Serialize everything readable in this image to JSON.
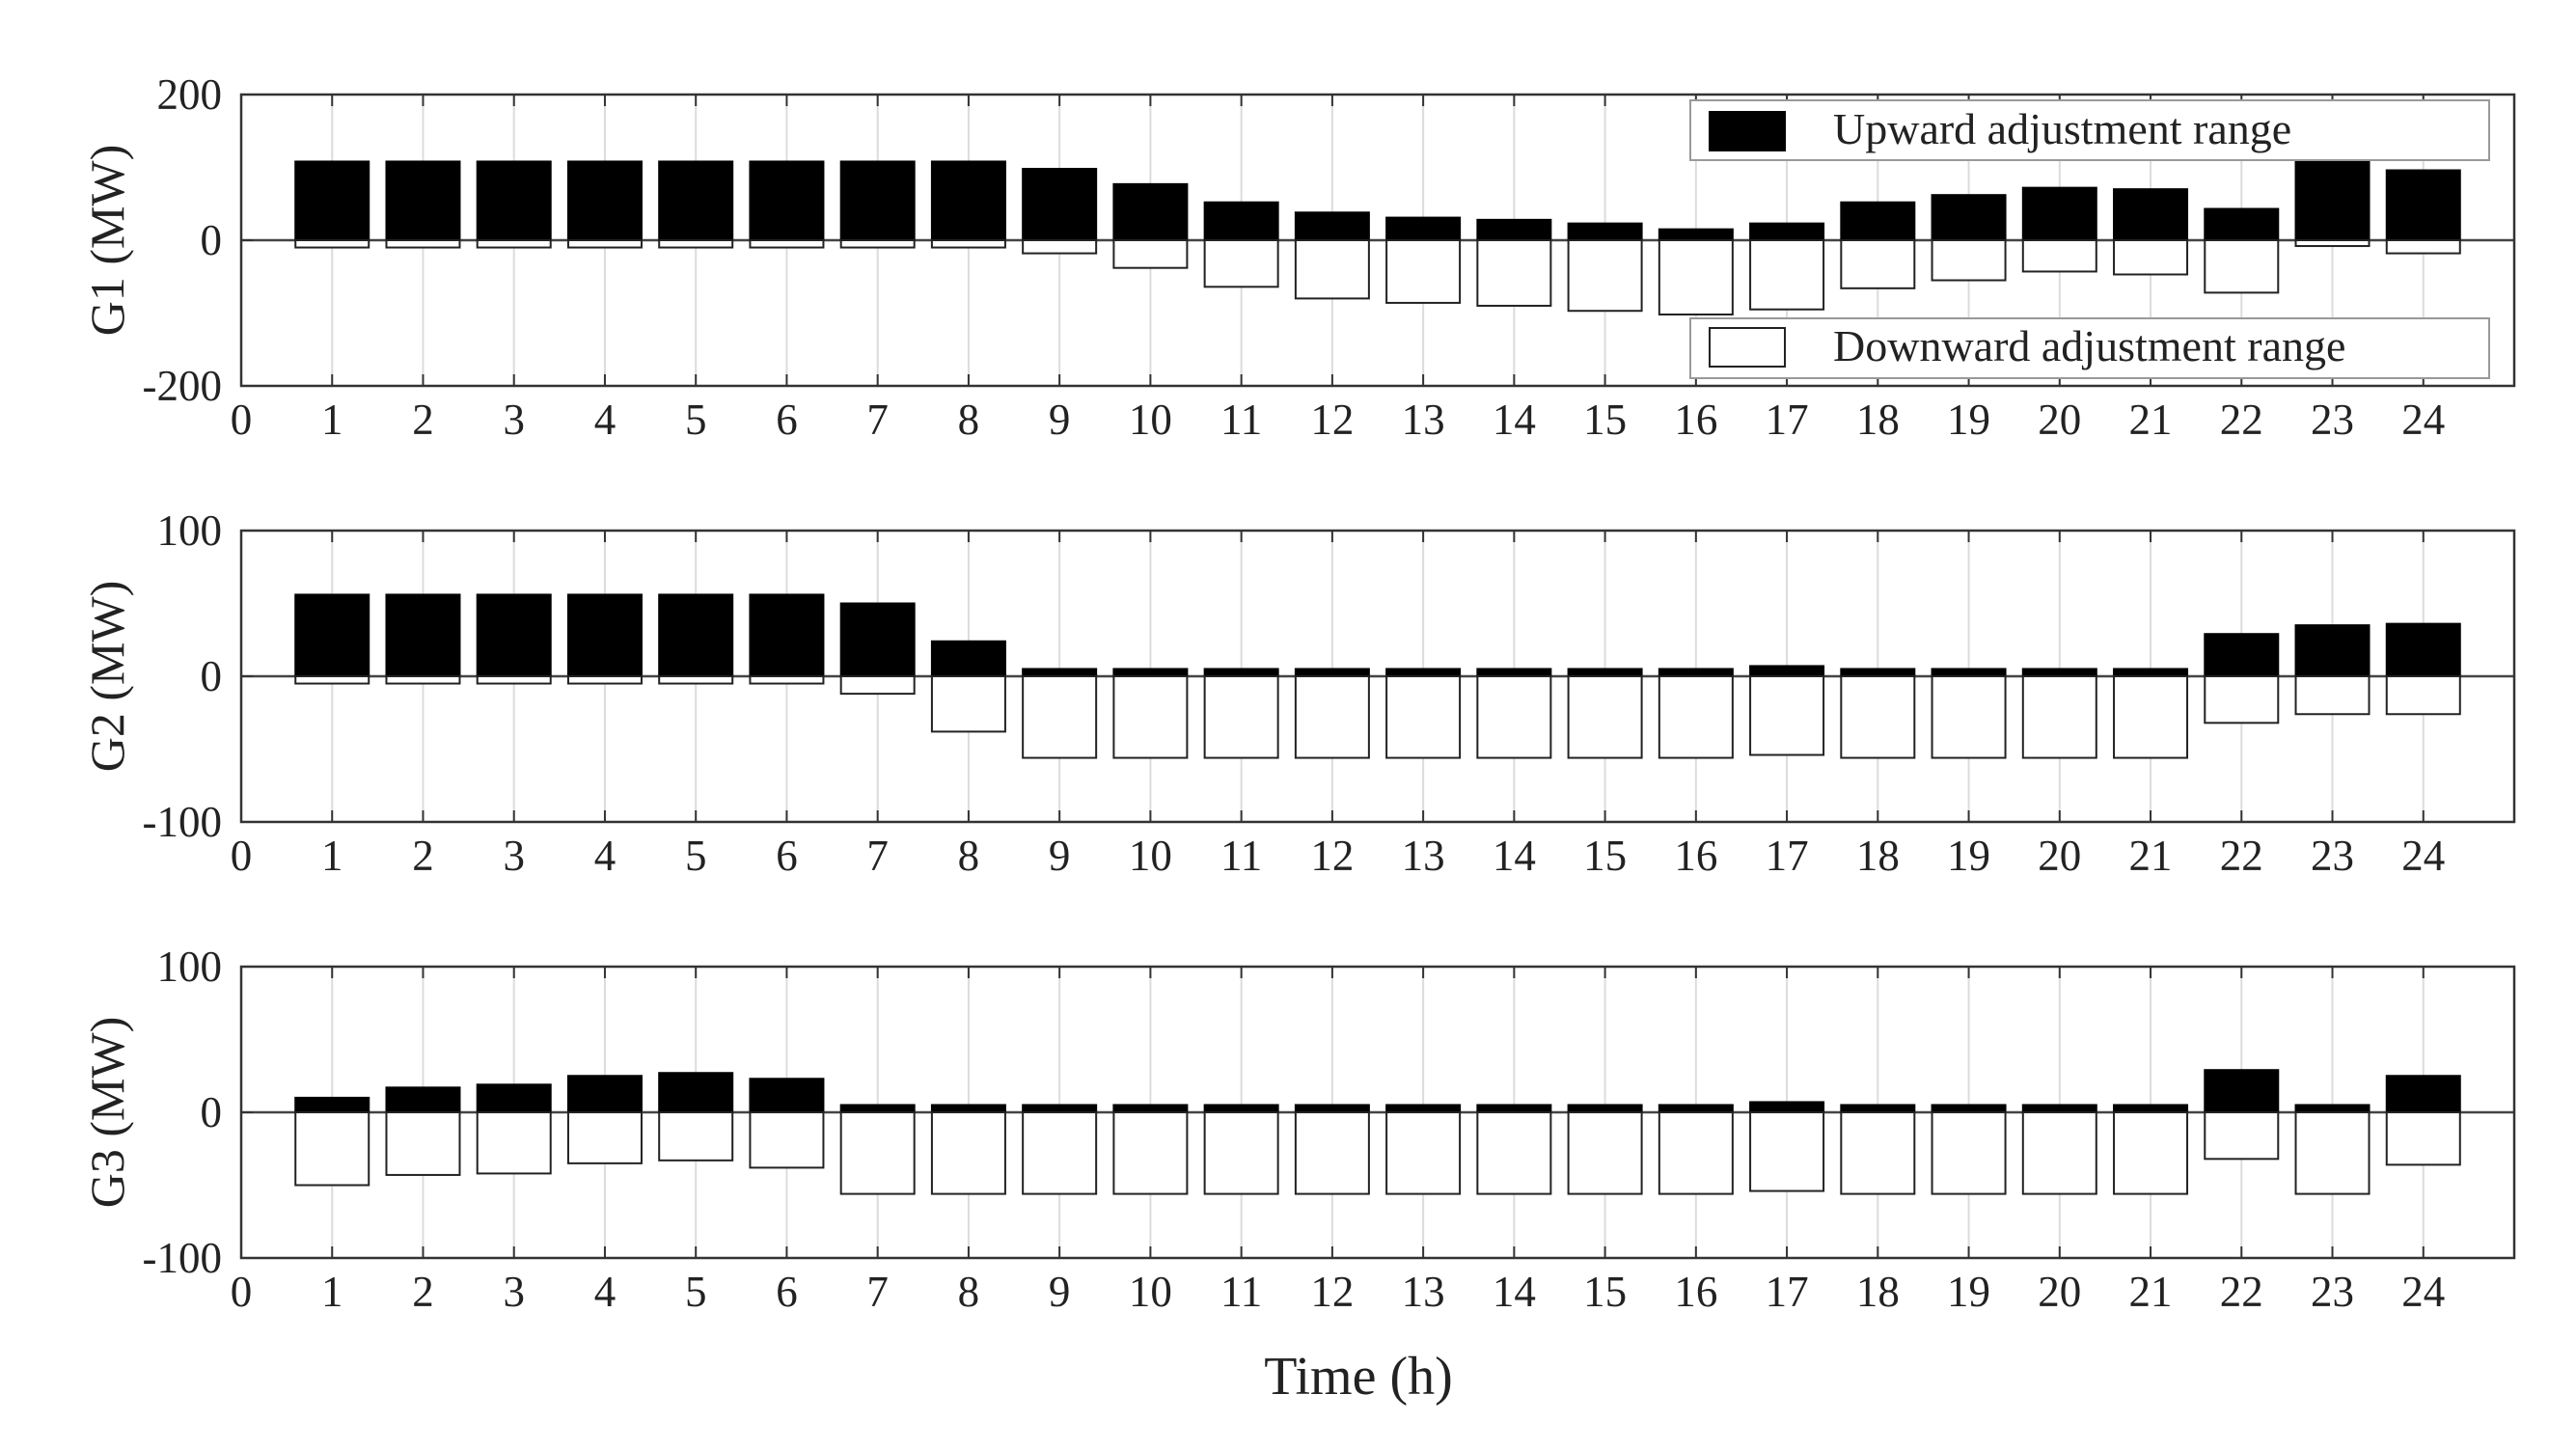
{
  "chart_data": [
    {
      "type": "bar",
      "ylabel": "G1 (MW)",
      "xlabel": "",
      "xlim": [
        0,
        25
      ],
      "ylim": [
        -200,
        200
      ],
      "yticks": [
        -200,
        0,
        200
      ],
      "xticks": [
        0,
        1,
        2,
        3,
        4,
        5,
        6,
        7,
        8,
        9,
        10,
        11,
        12,
        13,
        14,
        15,
        16,
        17,
        18,
        19,
        20,
        21,
        22,
        23,
        24
      ],
      "grid": true,
      "legend": "top-right",
      "x": [
        1,
        2,
        3,
        4,
        5,
        6,
        7,
        8,
        9,
        10,
        11,
        12,
        13,
        14,
        15,
        16,
        17,
        18,
        19,
        20,
        21,
        22,
        23,
        24
      ],
      "series": [
        {
          "name": "Upward adjustment range",
          "color": "#000000",
          "values": [
            108,
            108,
            108,
            108,
            108,
            108,
            108,
            108,
            98,
            77,
            52,
            38,
            31,
            28,
            23,
            15,
            23,
            52,
            62,
            72,
            70,
            43,
            110,
            96
          ]
        },
        {
          "name": "Downward adjustment range",
          "color": "#ffffff",
          "values": [
            -10,
            -10,
            -10,
            -10,
            -10,
            -10,
            -10,
            -10,
            -18,
            -38,
            -64,
            -80,
            -86,
            -90,
            -97,
            -102,
            -95,
            -66,
            -55,
            -43,
            -47,
            -72,
            -8,
            -18
          ]
        }
      ]
    },
    {
      "type": "bar",
      "ylabel": "G2 (MW)",
      "xlabel": "",
      "xlim": [
        0,
        25
      ],
      "ylim": [
        -100,
        100
      ],
      "yticks": [
        -100,
        0,
        100
      ],
      "xticks": [
        0,
        1,
        2,
        3,
        4,
        5,
        6,
        7,
        8,
        9,
        10,
        11,
        12,
        13,
        14,
        15,
        16,
        17,
        18,
        19,
        20,
        21,
        22,
        23,
        24
      ],
      "grid": true,
      "x": [
        1,
        2,
        3,
        4,
        5,
        6,
        7,
        8,
        9,
        10,
        11,
        12,
        13,
        14,
        15,
        16,
        17,
        18,
        19,
        20,
        21,
        22,
        23,
        24
      ],
      "series": [
        {
          "color": "#000000",
          "values": [
            56,
            56,
            56,
            56,
            56,
            56,
            50,
            24,
            5,
            5,
            5,
            5,
            5,
            5,
            5,
            5,
            7,
            5,
            5,
            5,
            5,
            29,
            35,
            36
          ]
        },
        {
          "color": "#ffffff",
          "values": [
            -5,
            -5,
            -5,
            -5,
            -5,
            -5,
            -12,
            -38,
            -56,
            -56,
            -56,
            -56,
            -56,
            -56,
            -56,
            -56,
            -54,
            -56,
            -56,
            -56,
            -56,
            -32,
            -26,
            -26
          ]
        }
      ]
    },
    {
      "type": "bar",
      "ylabel": "G3 (MW)",
      "xlabel": "Time (h)",
      "xlim": [
        0,
        25
      ],
      "ylim": [
        -100,
        100
      ],
      "yticks": [
        -100,
        0,
        100
      ],
      "xticks": [
        0,
        1,
        2,
        3,
        4,
        5,
        6,
        7,
        8,
        9,
        10,
        11,
        12,
        13,
        14,
        15,
        16,
        17,
        18,
        19,
        20,
        21,
        22,
        23,
        24
      ],
      "grid": true,
      "x": [
        1,
        2,
        3,
        4,
        5,
        6,
        7,
        8,
        9,
        10,
        11,
        12,
        13,
        14,
        15,
        16,
        17,
        18,
        19,
        20,
        21,
        22,
        23,
        24
      ],
      "series": [
        {
          "color": "#000000",
          "values": [
            10,
            17,
            19,
            25,
            27,
            23,
            5,
            5,
            5,
            5,
            5,
            5,
            5,
            5,
            5,
            5,
            7,
            5,
            5,
            5,
            5,
            29,
            5,
            25
          ]
        },
        {
          "color": "#ffffff",
          "values": [
            -50,
            -43,
            -42,
            -35,
            -33,
            -38,
            -56,
            -56,
            -56,
            -56,
            -56,
            -56,
            -56,
            -56,
            -56,
            -56,
            -54,
            -56,
            -56,
            -56,
            -56,
            -32,
            -56,
            -36
          ]
        }
      ]
    }
  ]
}
